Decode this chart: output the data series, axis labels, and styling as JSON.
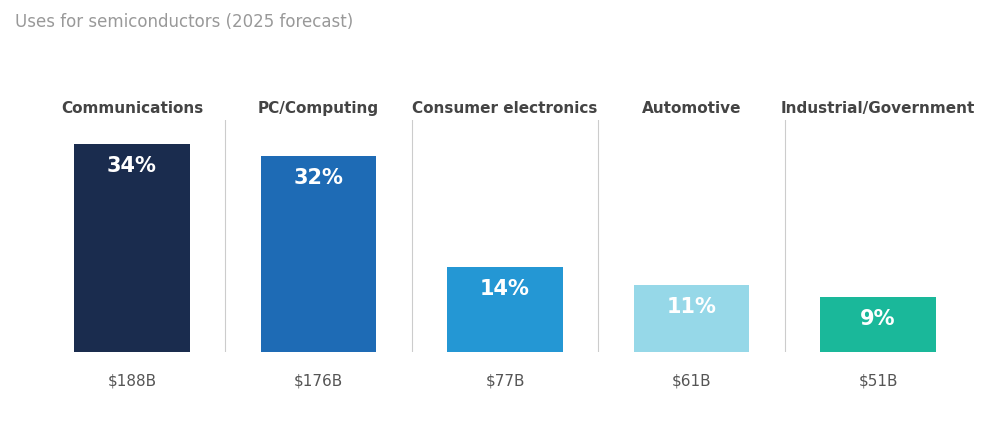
{
  "title": "Uses for semiconductors (2025 forecast)",
  "categories": [
    "Communications",
    "PC/Computing",
    "Consumer electronics",
    "Automotive",
    "Industrial/Government"
  ],
  "values": [
    34,
    32,
    14,
    11,
    9
  ],
  "dollar_labels": [
    "$188B",
    "$176B",
    "$77B",
    "$61B",
    "$51B"
  ],
  "pct_labels": [
    "34%",
    "32%",
    "14%",
    "11%",
    "9%"
  ],
  "bar_colors": [
    "#1a2c4e",
    "#1e6bb5",
    "#2497d4",
    "#96d8e8",
    "#1ab89a"
  ],
  "background_color": "#ffffff",
  "title_color": "#999999",
  "category_color": "#444444",
  "dollar_color": "#555555",
  "pct_text_color": "#ffffff",
  "separator_color": "#cccccc",
  "title_fontsize": 12,
  "category_fontsize": 11,
  "pct_fontsize": 15,
  "dollar_fontsize": 11,
  "bar_width": 0.62,
  "ylim": [
    0,
    38
  ]
}
